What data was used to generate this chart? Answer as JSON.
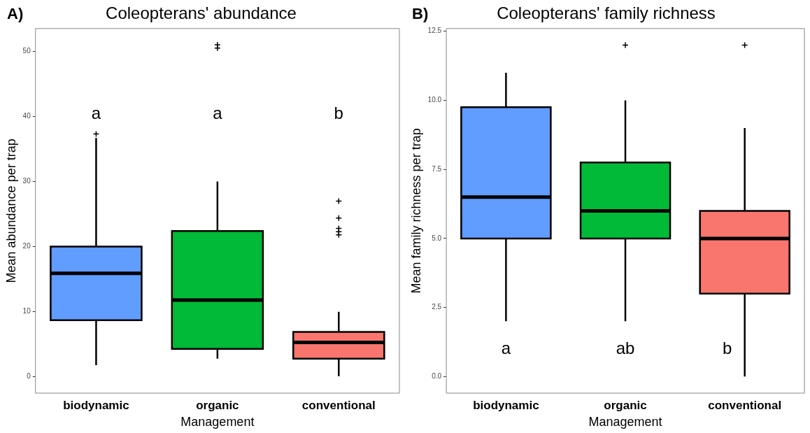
{
  "chart_data": [
    {
      "type": "box",
      "title": "Coleopterans' abundance",
      "xlabel": "Management",
      "ylabel": "Mean abundance per trap",
      "categories": [
        "biodynamic",
        "organic",
        "conventional"
      ],
      "colors": [
        "#619cff",
        "#00ba38",
        "#f8766d"
      ],
      "boxes": [
        {
          "low": 1.8,
          "q1": 8.7,
          "median": 15.9,
          "q3": 20,
          "high": 36.7,
          "outliers": [
            37.3
          ]
        },
        {
          "low": 2.8,
          "q1": 4.3,
          "median": 11.8,
          "q3": 22.4,
          "high": 30,
          "outliers": [
            50.5,
            51
          ]
        },
        {
          "low": 0.1,
          "q1": 2.8,
          "median": 5.3,
          "q3": 6.9,
          "high": 10,
          "outliers": [
            27,
            24.4,
            22.8,
            22.3,
            21.8
          ]
        }
      ],
      "ylim": [
        -2.5,
        53.5
      ],
      "yticks": [
        0,
        10,
        20,
        30,
        40,
        50
      ],
      "annotations": [
        "A)",
        "a",
        "a",
        "b"
      ]
    },
    {
      "type": "box",
      "title": "Coleopterans' family richness",
      "xlabel": "Management",
      "ylabel": "Mean family richness per trap",
      "categories": [
        "biodynamic",
        "organic",
        "conventional"
      ],
      "colors": [
        "#619cff",
        "#00ba38",
        "#f8766d"
      ],
      "boxes": [
        {
          "low": 2,
          "q1": 5,
          "median": 6.5,
          "q3": 9.75,
          "high": 11
        },
        {
          "low": 2,
          "q1": 5,
          "median": 6,
          "q3": 7.75,
          "high": 10,
          "outliers": [
            12
          ]
        },
        {
          "low": 0,
          "q1": 3,
          "median": 5,
          "q3": 6,
          "high": 9,
          "outliers": [
            12
          ]
        }
      ],
      "ylim": [
        -0.6,
        12.6
      ],
      "yticks": [
        {
          "value": 0,
          "label": "0.0"
        },
        2.5,
        {
          "value": 5,
          "label": "5.0"
        },
        7.5,
        {
          "value": 10,
          "label": "10.0"
        },
        12.5
      ],
      "annotations": [
        "B)",
        "a",
        "ab",
        "b"
      ]
    }
  ]
}
